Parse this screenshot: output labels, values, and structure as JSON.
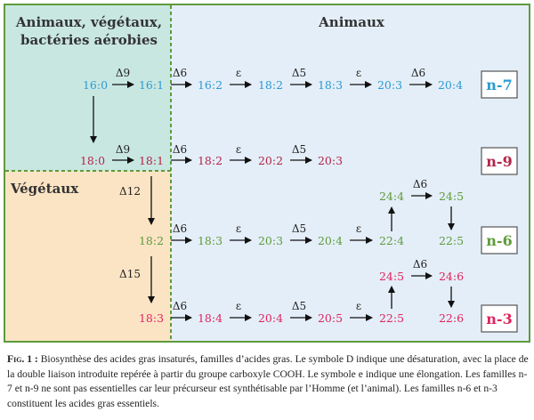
{
  "headers": {
    "top_left": [
      "Animaux, végétaux,",
      "bactéries aérobies"
    ],
    "bottom_left": "Végétaux",
    "right": "Animaux"
  },
  "enzymes": {
    "d9": "Δ9",
    "d6": "Δ6",
    "e": "ε",
    "d5": "Δ5",
    "d12": "Δ12",
    "d15": "Δ15"
  },
  "families": {
    "n7": "n-7",
    "n9": "n-9",
    "n6": "n-6",
    "n3": "n-3"
  },
  "rows": {
    "n7": [
      "16:0",
      "16:1",
      "16:2",
      "18:2",
      "18:3",
      "20:3",
      "20:4"
    ],
    "n9": [
      "18:0",
      "18:1",
      "18:2",
      "20:2",
      "20:3"
    ],
    "n6": [
      "18:2",
      "18:3",
      "20:3",
      "20:4",
      "22:4",
      "24:4",
      "24:5",
      "22:5"
    ],
    "n3": [
      "18:3",
      "18:4",
      "20:4",
      "20:5",
      "22:5",
      "24:5",
      "24:6",
      "22:6"
    ]
  },
  "colors": {
    "n7": "#2b9bd3",
    "n9": "#b3264a",
    "n6": "#5e9b3c",
    "n3": "#e0245e",
    "border": "#5e9b3c",
    "bg_teal": "#c9e7e1",
    "bg_blue": "#e4eef8",
    "bg_peach": "#fbe4c4"
  },
  "caption": {
    "label": "Fig. 1 :",
    "text": "Biosynthèse des acides gras insaturés, familles d’acides gras. Le symbole D indique une désaturation, avec la place de la double liaison introduite repérée à partir du groupe carboxyle COOH. Le symbole e indique une élongation. Les familles n-7 et n-9 ne sont pas essentielles car leur précurseur est synthétisable par l’Homme (et l’animal). Les familles n-6 et n-3 constituent les acides gras essentiels."
  }
}
